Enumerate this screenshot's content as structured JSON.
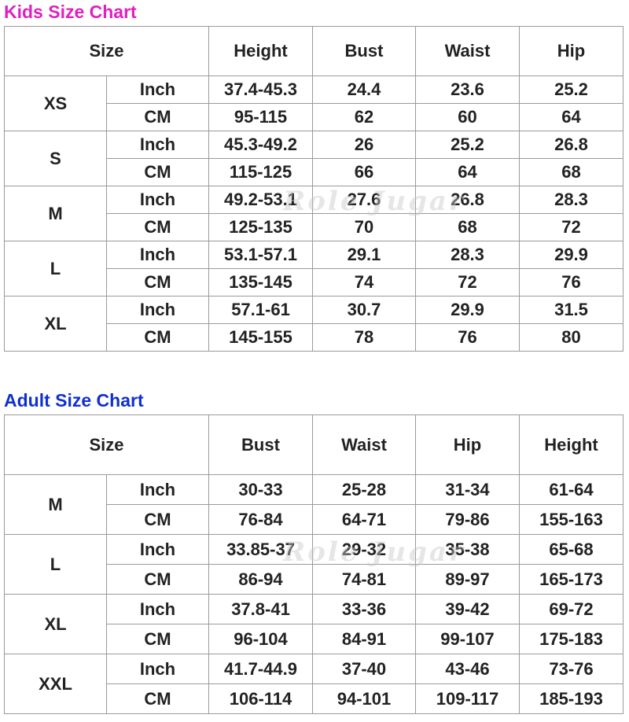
{
  "kids": {
    "title": "Kids Size Chart",
    "headers": [
      "Size",
      "Height",
      "Bust",
      "Waist",
      "Hip"
    ],
    "rows": [
      {
        "size": "XS",
        "inch": [
          "37.4-45.3",
          "24.4",
          "23.6",
          "25.2"
        ],
        "cm": [
          "95-115",
          "62",
          "60",
          "64"
        ]
      },
      {
        "size": "S",
        "inch": [
          "45.3-49.2",
          "26",
          "25.2",
          "26.8"
        ],
        "cm": [
          "115-125",
          "66",
          "64",
          "68"
        ]
      },
      {
        "size": "M",
        "inch": [
          "49.2-53.1",
          "27.6",
          "26.8",
          "28.3"
        ],
        "cm": [
          "125-135",
          "70",
          "68",
          "72"
        ]
      },
      {
        "size": "L",
        "inch": [
          "53.1-57.1",
          "29.1",
          "28.3",
          "29.9"
        ],
        "cm": [
          "135-145",
          "74",
          "72",
          "76"
        ]
      },
      {
        "size": "XL",
        "inch": [
          "57.1-61",
          "30.7",
          "29.9",
          "31.5"
        ],
        "cm": [
          "145-155",
          "78",
          "76",
          "80"
        ]
      }
    ]
  },
  "adult": {
    "title": "Adult Size Chart",
    "headers": [
      "Size",
      "Bust",
      "Waist",
      "Hip",
      "Height"
    ],
    "rows": [
      {
        "size": "M",
        "inch": [
          "30-33",
          "25-28",
          "31-34",
          "61-64"
        ],
        "cm": [
          "76-84",
          "64-71",
          "79-86",
          "155-163"
        ]
      },
      {
        "size": "L",
        "inch": [
          "33.85-37",
          "29-32",
          "35-38",
          "65-68"
        ],
        "cm": [
          "86-94",
          "74-81",
          "89-97",
          "165-173"
        ]
      },
      {
        "size": "XL",
        "inch": [
          "37.8-41",
          "33-36",
          "39-42",
          "69-72"
        ],
        "cm": [
          "96-104",
          "84-91",
          "99-107",
          "175-183"
        ]
      },
      {
        "size": "XXL",
        "inch": [
          "41.7-44.9",
          "37-40",
          "43-46",
          "73-76"
        ],
        "cm": [
          "106-114",
          "94-101",
          "109-117",
          "185-193"
        ]
      }
    ]
  },
  "units": {
    "inch": "Inch",
    "cm": "CM"
  },
  "watermark": "Role Jugar",
  "colors": {
    "kids_title": "#e020c0",
    "adult_title": "#1030d0",
    "border": "#9a9a9a"
  }
}
